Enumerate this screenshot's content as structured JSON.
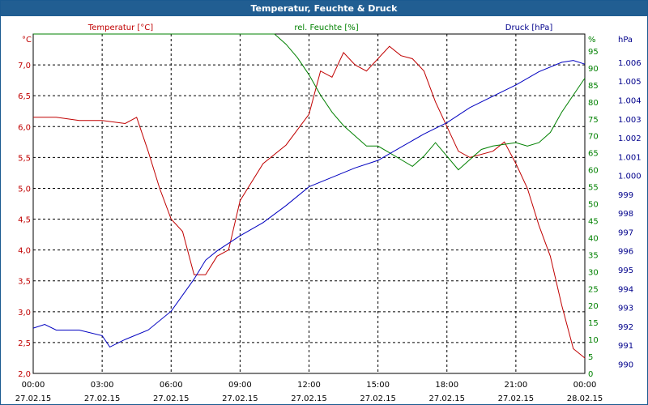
{
  "window": {
    "title": "Temperatur, Feuchte & Druck"
  },
  "chart_data": {
    "type": "line",
    "title": "Temperatur, Feuchte & Druck",
    "grid": true,
    "colors": {
      "temperature": "#c00000",
      "humidity": "#008000",
      "pressure": "#0000c0",
      "title_bar": "#215e92"
    },
    "x_ticks": [
      {
        "time": "00:00",
        "date": "27.02.15"
      },
      {
        "time": "03:00",
        "date": "27.02.15"
      },
      {
        "time": "06:00",
        "date": "27.02.15"
      },
      {
        "time": "09:00",
        "date": "27.02.15"
      },
      {
        "time": "12:00",
        "date": "27.02.15"
      },
      {
        "time": "15:00",
        "date": "27.02.15"
      },
      {
        "time": "18:00",
        "date": "27.02.15"
      },
      {
        "time": "21:00",
        "date": "27.02.15"
      },
      {
        "time": "00:00",
        "date": "28.02.15"
      }
    ],
    "axes": {
      "temperature": {
        "label": "Temperatur [°C]",
        "unit": "°C",
        "ylim": [
          2.0,
          7.5
        ],
        "ticks": [
          "2,0",
          "2,5",
          "3,0",
          "3,5",
          "4,0",
          "4,5",
          "5,0",
          "5,5",
          "6,0",
          "6,5",
          "7,0"
        ]
      },
      "humidity": {
        "label": "rel. Feuchte [%]",
        "unit": "%",
        "ylim": [
          0,
          100
        ],
        "ticks": [
          "0",
          "5",
          "10",
          "15",
          "20",
          "25",
          "30",
          "35",
          "40",
          "45",
          "50",
          "55",
          "60",
          "65",
          "70",
          "75",
          "80",
          "85",
          "90",
          "95"
        ]
      },
      "pressure": {
        "label": "Druck [hPa]",
        "unit": "hPa",
        "ylim": [
          989.5,
          1007.5
        ],
        "ticks": [
          "990",
          "991",
          "992",
          "993",
          "994",
          "995",
          "996",
          "997",
          "998",
          "999",
          "1.000",
          "1.001",
          "1.002",
          "1.003",
          "1.004",
          "1.005",
          "1.006"
        ]
      }
    },
    "series": [
      {
        "name": "Temperatur [°C]",
        "axis": "temperature",
        "x": [
          "27.02.15 00:00",
          "27.02.15 01:00",
          "27.02.15 02:00",
          "27.02.15 03:00",
          "27.02.15 04:00",
          "27.02.15 04:30",
          "27.02.15 05:00",
          "27.02.15 05:30",
          "27.02.15 06:00",
          "27.02.15 06:30",
          "27.02.15 07:00",
          "27.02.15 07:30",
          "27.02.15 08:00",
          "27.02.15 08:30",
          "27.02.15 09:00",
          "27.02.15 10:00",
          "27.02.15 11:00",
          "27.02.15 12:00",
          "27.02.15 12:30",
          "27.02.15 13:00",
          "27.02.15 13:30",
          "27.02.15 14:00",
          "27.02.15 14:30",
          "27.02.15 15:00",
          "27.02.15 15:30",
          "27.02.15 16:00",
          "27.02.15 16:30",
          "27.02.15 17:00",
          "27.02.15 17:30",
          "27.02.15 18:00",
          "27.02.15 18:30",
          "27.02.15 19:00",
          "27.02.15 20:00",
          "27.02.15 20:30",
          "27.02.15 21:00",
          "27.02.15 21:30",
          "27.02.15 22:00",
          "27.02.15 22:30",
          "27.02.15 23:00",
          "27.02.15 23:30",
          "28.02.15 00:00"
        ],
        "values": [
          6.15,
          6.15,
          6.1,
          6.1,
          6.05,
          6.15,
          5.6,
          5.0,
          4.5,
          4.3,
          3.6,
          3.6,
          3.9,
          4.0,
          4.8,
          5.4,
          5.7,
          6.2,
          6.9,
          6.8,
          7.2,
          7.0,
          6.9,
          7.1,
          7.3,
          7.15,
          7.1,
          6.9,
          6.4,
          6.0,
          5.6,
          5.5,
          5.6,
          5.75,
          5.4,
          5.0,
          4.4,
          3.9,
          3.1,
          2.4,
          2.25
        ]
      },
      {
        "name": "rel. Feuchte [%]",
        "axis": "humidity",
        "x": [
          "27.02.15 00:00",
          "27.02.15 02:00",
          "27.02.15 04:00",
          "27.02.15 06:00",
          "27.02.15 08:00",
          "27.02.15 09:30",
          "27.02.15 10:00",
          "27.02.15 10:30",
          "27.02.15 11:00",
          "27.02.15 11:30",
          "27.02.15 12:00",
          "27.02.15 12:30",
          "27.02.15 13:00",
          "27.02.15 13:30",
          "27.02.15 14:00",
          "27.02.15 14:30",
          "27.02.15 15:00",
          "27.02.15 15:30",
          "27.02.15 16:00",
          "27.02.15 16:30",
          "27.02.15 17:00",
          "27.02.15 17:30",
          "27.02.15 18:00",
          "27.02.15 18:30",
          "27.02.15 19:00",
          "27.02.15 19:30",
          "27.02.15 20:00",
          "27.02.15 21:00",
          "27.02.15 21:30",
          "27.02.15 22:00",
          "27.02.15 22:30",
          "27.02.15 23:00",
          "27.02.15 23:30",
          "28.02.15 00:00"
        ],
        "values": [
          100,
          100,
          100,
          100,
          100,
          100,
          100,
          100,
          97,
          93,
          88,
          82,
          77,
          73,
          70,
          67,
          67,
          65,
          63,
          61,
          64,
          68,
          64,
          60,
          63,
          66,
          67,
          68,
          67,
          68,
          71,
          77,
          82,
          87
        ]
      },
      {
        "name": "Druck [hPa]",
        "axis": "pressure",
        "x": [
          "27.02.15 00:00",
          "27.02.15 00:30",
          "27.02.15 01:00",
          "27.02.15 02:00",
          "27.02.15 03:00",
          "27.02.15 03:20",
          "27.02.15 04:00",
          "27.02.15 05:00",
          "27.02.15 06:00",
          "27.02.15 07:00",
          "27.02.15 07:30",
          "27.02.15 08:00",
          "27.02.15 09:00",
          "27.02.15 10:00",
          "27.02.15 11:00",
          "27.02.15 12:00",
          "27.02.15 13:00",
          "27.02.15 14:00",
          "27.02.15 15:00",
          "27.02.15 16:00",
          "27.02.15 17:00",
          "27.02.15 18:00",
          "27.02.15 19:00",
          "27.02.15 20:00",
          "27.02.15 21:00",
          "27.02.15 22:00",
          "27.02.15 23:00",
          "27.02.15 23:30",
          "28.02.15 00:00"
        ],
        "values": [
          991.9,
          992.1,
          991.8,
          991.8,
          991.5,
          990.9,
          991.3,
          991.8,
          992.8,
          994.5,
          995.5,
          996.0,
          996.8,
          997.5,
          998.4,
          999.4,
          999.9,
          1000.4,
          1000.8,
          1001.5,
          1002.2,
          1002.8,
          1003.6,
          1004.2,
          1004.8,
          1005.5,
          1006.0,
          1006.1,
          1005.9
        ]
      }
    ]
  }
}
